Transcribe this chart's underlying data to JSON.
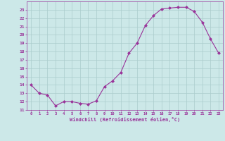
{
  "x": [
    0,
    1,
    2,
    3,
    4,
    5,
    6,
    7,
    8,
    9,
    10,
    11,
    12,
    13,
    14,
    15,
    16,
    17,
    18,
    19,
    20,
    21,
    22,
    23
  ],
  "y": [
    14.0,
    13.0,
    12.8,
    11.5,
    12.0,
    12.0,
    11.8,
    11.7,
    12.1,
    13.8,
    14.5,
    15.5,
    17.8,
    19.0,
    21.1,
    22.3,
    23.1,
    23.2,
    23.3,
    23.3,
    22.8,
    21.5,
    19.5,
    17.8
  ],
  "line_color": "#993399",
  "marker": "D",
  "marker_size": 2,
  "bg_color": "#cce8e8",
  "grid_color": "#aacccc",
  "xlabel": "Windchill (Refroidissement éolien,°C)",
  "xlabel_color": "#993399",
  "tick_color": "#993399",
  "xlim": [
    -0.5,
    23.5
  ],
  "ylim": [
    11,
    24
  ],
  "yticks": [
    11,
    12,
    13,
    14,
    15,
    16,
    17,
    18,
    19,
    20,
    21,
    22,
    23
  ],
  "xticks": [
    0,
    1,
    2,
    3,
    4,
    5,
    6,
    7,
    8,
    9,
    10,
    11,
    12,
    13,
    14,
    15,
    16,
    17,
    18,
    19,
    20,
    21,
    22,
    23
  ]
}
